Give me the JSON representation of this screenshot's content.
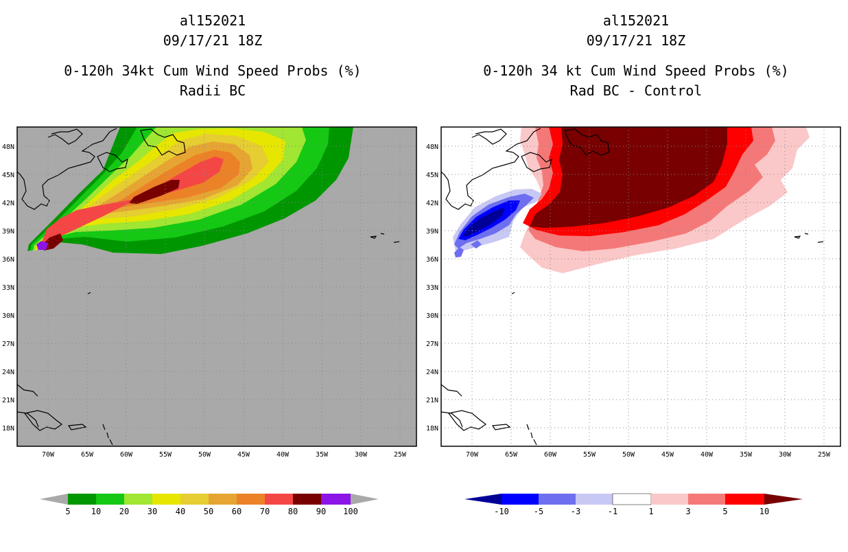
{
  "panels": [
    {
      "title": [
        "al152021",
        "09/17/21 18Z",
        "0-120h 34kt Cum Wind Speed Probs (%)",
        "Radii BC"
      ]
    },
    {
      "title": [
        "al152021",
        "09/17/21 18Z",
        "0-120h 34 kt Cum Wind Speed Probs (%)",
        "Rad BC - Control"
      ]
    }
  ],
  "colors": {
    "ocean_left": "#a9a9a9",
    "ocean_right": "#ffffff",
    "prob_levels": [
      "#009600",
      "#14c814",
      "#a0e632",
      "#e6e600",
      "#e6cd32",
      "#e6a532",
      "#ec8228",
      "#f54646",
      "#780000",
      "#8c14e6"
    ],
    "diff_levels": [
      "#000096",
      "#0000ff",
      "#6e6ef0",
      "#c8c8f5",
      "#ffffff",
      "#fac8c8",
      "#f57878",
      "#ff0000",
      "#780000"
    ]
  },
  "chart_data": [
    {
      "type": "heatmap",
      "title": "0-120h 34kt Cum Wind Speed Probs (%)",
      "subtitle": "Radii BC",
      "storm": "al152021",
      "time": "09/17/21 18Z",
      "x_ticks": [
        "70W",
        "65W",
        "60W",
        "55W",
        "50W",
        "45W",
        "40W",
        "35W",
        "30W",
        "25W"
      ],
      "y_ticks": [
        "48N",
        "45N",
        "42N",
        "39N",
        "36N",
        "33N",
        "30N",
        "27N",
        "24N",
        "21N",
        "18N"
      ],
      "xlim": [
        -74,
        -23
      ],
      "ylim": [
        16,
        50
      ],
      "colorbar_labels": [
        "5",
        "10",
        "20",
        "30",
        "40",
        "50",
        "60",
        "70",
        "80",
        "90",
        "100"
      ]
    },
    {
      "type": "heatmap",
      "title": "0-120h 34 kt Cum Wind Speed Probs (%)",
      "subtitle": "Rad BC - Control",
      "storm": "al152021",
      "time": "09/17/21 18Z",
      "x_ticks": [
        "70W",
        "65W",
        "60W",
        "55W",
        "50W",
        "45W",
        "40W",
        "35W",
        "30W",
        "25W"
      ],
      "y_ticks": [
        "48N",
        "45N",
        "42N",
        "39N",
        "36N",
        "33N",
        "30N",
        "27N",
        "24N",
        "21N",
        "18N"
      ],
      "xlim": [
        -74,
        -23
      ],
      "ylim": [
        16,
        50
      ],
      "colorbar_labels": [
        "-10",
        "-5",
        "-3",
        "-1",
        "1",
        "3",
        "5",
        "10"
      ]
    }
  ]
}
